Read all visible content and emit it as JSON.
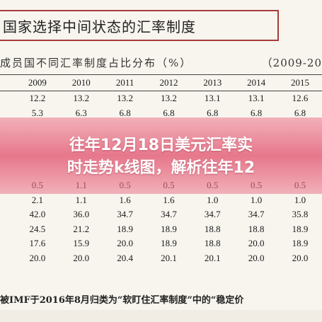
{
  "title": "国家选择中间状态的汇率制度",
  "subtitle": {
    "left": "成员国不同汇率制度占比分布（%）",
    "right": "（2009-20"
  },
  "table": {
    "years": [
      "2009",
      "2010",
      "2011",
      "2012",
      "2013",
      "2014",
      "2015"
    ],
    "rows": [
      [
        "12.2",
        "13.2",
        "13.2",
        "13.2",
        "13.1",
        "13.1",
        "12.6"
      ],
      [
        "5.3",
        "6.3",
        "6.8",
        "6.8",
        "6.8",
        "6.8",
        "6.8"
      ],
      [
        "",
        "",
        "",
        "",
        "",
        "",
        ""
      ],
      [
        "",
        "",
        "",
        "",
        "",
        "",
        ""
      ],
      [
        "",
        "",
        "",
        "",
        "",
        "",
        ""
      ],
      [
        "",
        "",
        "",
        "",
        "",
        "",
        ""
      ],
      [
        "0.5",
        "1.1",
        "0.5",
        "0.5",
        "0.5",
        "0.5",
        "0.5"
      ],
      [
        "2.1",
        "1.1",
        "1.6",
        "1.6",
        "1.0",
        "1.0",
        "1.0"
      ],
      [
        "42.0",
        "36.0",
        "34.7",
        "34.7",
        "34.7",
        "34.7",
        "35.8"
      ],
      [
        "24.5",
        "21.2",
        "18.9",
        "18.9",
        "18.8",
        "18.8",
        "18.9"
      ],
      [
        "17.6",
        "15.9",
        "20.0",
        "18.9",
        "18.8",
        "20.0",
        "18.9"
      ],
      [
        "20.0",
        "20.0",
        "20.4",
        "20.1",
        "20.1",
        "20.0",
        "20.0"
      ]
    ]
  },
  "overlay": {
    "line1": "往年12月18日美元汇率实",
    "line2": "时走势k线图，解析往年12"
  },
  "footer": "被IMF于2016年8月归类为“软盯住汇率制度”中的“稳定价"
}
